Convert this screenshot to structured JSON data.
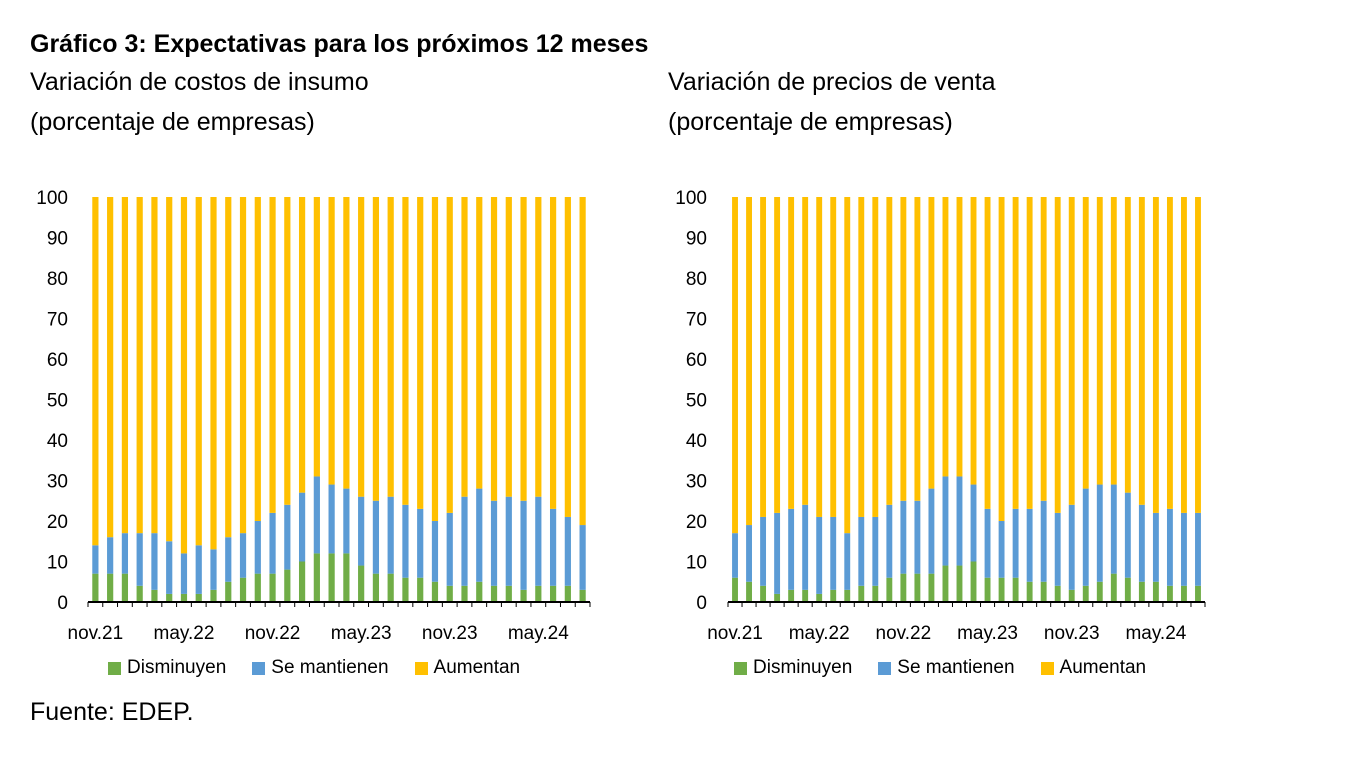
{
  "title": "Gráfico 3: Expectativas para los próximos 12 meses",
  "source": "Fuente: EDEP.",
  "colors": {
    "disminuyen": "#70ad47",
    "se_mantienen": "#5b9bd5",
    "aumentan": "#ffc000"
  },
  "chart_data": [
    {
      "type": "bar",
      "stacked": true,
      "title": "Variación de costos de insumo",
      "subtitle": "(porcentaje de empresas)",
      "xlabel": "",
      "ylabel": "",
      "ylim": [
        0,
        100
      ],
      "yticks": [
        0,
        10,
        20,
        30,
        40,
        50,
        60,
        70,
        80,
        90,
        100
      ],
      "grid": false,
      "legend_position": "bottom",
      "x_tick_labels": [
        "nov.21",
        "may.22",
        "nov.22",
        "may.23",
        "nov.23",
        "may.24"
      ],
      "categories": [
        "nov.21",
        "dic.21",
        "ene.22",
        "feb.22",
        "mar.22",
        "abr.22",
        "may.22",
        "jun.22",
        "jul.22",
        "ago.22",
        "sep.22",
        "oct.22",
        "nov.22",
        "dic.22",
        "ene.23",
        "feb.23",
        "mar.23",
        "abr.23",
        "may.23",
        "jun.23",
        "jul.23",
        "ago.23",
        "sep.23",
        "oct.23",
        "nov.23",
        "dic.23",
        "ene.24",
        "feb.24",
        "mar.24",
        "abr.24",
        "may.24",
        "jun.24",
        "jul.24",
        "ago.24"
      ],
      "series": [
        {
          "name": "Disminuyen",
          "values": [
            7,
            7,
            7,
            4,
            3,
            2,
            2,
            2,
            3,
            5,
            6,
            7,
            7,
            8,
            10,
            12,
            12,
            12,
            9,
            7,
            7,
            6,
            6,
            5,
            4,
            4,
            5,
            4,
            4,
            3,
            4,
            4,
            4,
            3
          ]
        },
        {
          "name": "Se mantienen",
          "values": [
            7,
            9,
            10,
            13,
            14,
            13,
            10,
            12,
            10,
            11,
            11,
            13,
            15,
            16,
            17,
            19,
            17,
            16,
            17,
            18,
            19,
            18,
            17,
            15,
            18,
            22,
            23,
            21,
            22,
            22,
            22,
            19,
            17,
            16
          ]
        },
        {
          "name": "Aumentan",
          "values": [
            86,
            84,
            83,
            83,
            83,
            85,
            88,
            86,
            87,
            84,
            83,
            80,
            78,
            76,
            73,
            69,
            71,
            72,
            74,
            75,
            74,
            76,
            77,
            80,
            78,
            74,
            72,
            75,
            74,
            75,
            74,
            77,
            79,
            81
          ]
        }
      ]
    },
    {
      "type": "bar",
      "stacked": true,
      "title": "Variación de precios de venta",
      "subtitle": "(porcentaje de empresas)",
      "xlabel": "",
      "ylabel": "",
      "ylim": [
        0,
        100
      ],
      "yticks": [
        0,
        10,
        20,
        30,
        40,
        50,
        60,
        70,
        80,
        90,
        100
      ],
      "grid": false,
      "legend_position": "bottom",
      "x_tick_labels": [
        "nov.21",
        "may.22",
        "nov.22",
        "may.23",
        "nov.23",
        "may.24"
      ],
      "categories": [
        "nov.21",
        "dic.21",
        "ene.22",
        "feb.22",
        "mar.22",
        "abr.22",
        "may.22",
        "jun.22",
        "jul.22",
        "ago.22",
        "sep.22",
        "oct.22",
        "nov.22",
        "dic.22",
        "ene.23",
        "feb.23",
        "mar.23",
        "abr.23",
        "may.23",
        "jun.23",
        "jul.23",
        "ago.23",
        "sep.23",
        "oct.23",
        "nov.23",
        "dic.23",
        "ene.24",
        "feb.24",
        "mar.24",
        "abr.24",
        "may.24",
        "jun.24",
        "jul.24",
        "ago.24"
      ],
      "series": [
        {
          "name": "Disminuyen",
          "values": [
            6,
            5,
            4,
            2,
            3,
            3,
            2,
            3,
            3,
            4,
            4,
            6,
            7,
            7,
            7,
            9,
            9,
            10,
            6,
            6,
            6,
            5,
            5,
            4,
            3,
            4,
            5,
            7,
            6,
            5,
            5,
            4,
            4,
            4
          ]
        },
        {
          "name": "Se mantienen",
          "values": [
            11,
            14,
            17,
            20,
            20,
            21,
            19,
            18,
            14,
            17,
            17,
            18,
            18,
            18,
            21,
            22,
            22,
            19,
            17,
            14,
            17,
            18,
            20,
            18,
            21,
            24,
            24,
            22,
            21,
            19,
            17,
            19,
            18,
            18
          ]
        },
        {
          "name": "Aumentan",
          "values": [
            83,
            81,
            79,
            78,
            77,
            76,
            79,
            79,
            83,
            79,
            79,
            76,
            75,
            75,
            72,
            69,
            69,
            71,
            77,
            80,
            77,
            77,
            75,
            78,
            76,
            72,
            71,
            71,
            73,
            76,
            78,
            77,
            78,
            78
          ]
        }
      ]
    }
  ]
}
